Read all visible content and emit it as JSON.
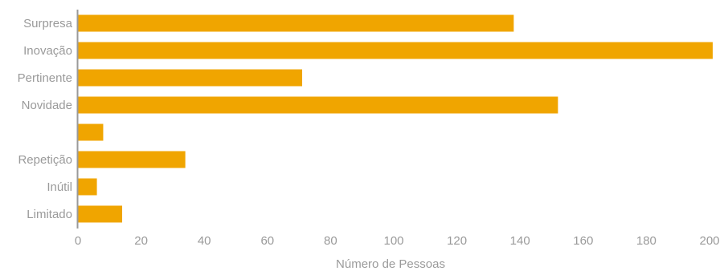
{
  "chart_data": {
    "type": "bar",
    "orientation": "horizontal",
    "categories": [
      "Surpresa",
      "Inovação",
      "Pertinente",
      "Novidade",
      "",
      "Repetição",
      "Inútil",
      "Limitado"
    ],
    "values": [
      138,
      201,
      71,
      152,
      8,
      34,
      6,
      14
    ],
    "xlabel": "Número de Pessoas",
    "ylabel": "",
    "xlim": [
      0,
      200
    ],
    "xticks": [
      0,
      20,
      40,
      60,
      80,
      100,
      120,
      140,
      160,
      180,
      200
    ],
    "grid": false,
    "legend": "none",
    "bar_color": "#f0a500",
    "axis_color": "#9a9a9a"
  }
}
